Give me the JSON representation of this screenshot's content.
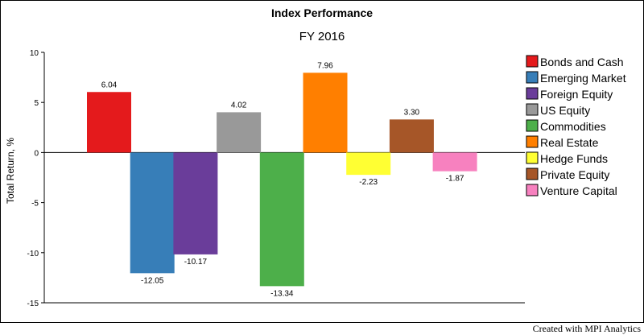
{
  "chart_data": {
    "type": "bar",
    "title": "Index Performance",
    "subtitle": "FY 2016",
    "ylabel": "Total Return, %",
    "xlabel": "",
    "ylim": [
      -15,
      10
    ],
    "yticks": [
      10,
      5,
      0,
      -5,
      -10,
      -15
    ],
    "categories": [
      "Bonds and Cash",
      "Emerging Market",
      "Foreign Equity",
      "US Equity",
      "Commodities",
      "Real Estate",
      "Hedge Funds",
      "Private Equity",
      "Venture Capital"
    ],
    "values": [
      6.04,
      -12.05,
      -10.17,
      4.02,
      -13.34,
      7.96,
      -2.23,
      3.3,
      -1.87
    ],
    "data_labels": [
      "6.04",
      "-12.05",
      "-10.17",
      "4.02",
      "-13.34",
      "7.96",
      "-2.23",
      "3.30",
      "-1.87"
    ],
    "colors": [
      "#e41a1c",
      "#377eb8",
      "#6a3d9a",
      "#999999",
      "#4daf4a",
      "#ff7f00",
      "#ffff33",
      "#a65628",
      "#f781bf"
    ],
    "legend_position": "right",
    "grid": false
  },
  "footer": "Created with MPI Analytics"
}
